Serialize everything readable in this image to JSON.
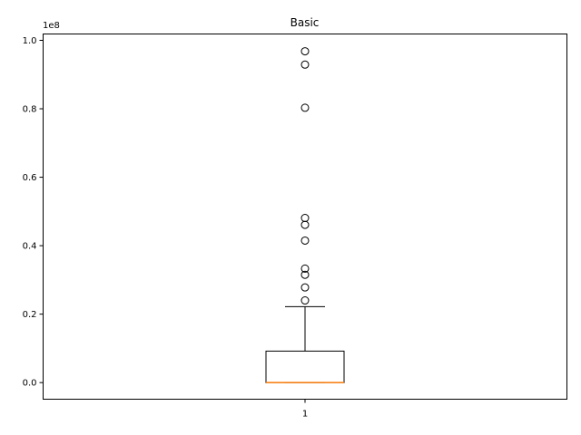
{
  "chart_data": {
    "type": "box",
    "title": "Basic",
    "xlabel": "",
    "ylabel": "",
    "offset_text": "1e8",
    "categories": [
      "1"
    ],
    "ylim": [
      -0.0485,
      1.0185
    ],
    "yticks": [
      {
        "value": 0.0,
        "label": "0.0"
      },
      {
        "value": 0.2,
        "label": "0.2"
      },
      {
        "value": 0.4,
        "label": "0.4"
      },
      {
        "value": 0.6,
        "label": "0.6"
      },
      {
        "value": 0.8,
        "label": "0.8"
      },
      {
        "value": 1.0,
        "label": "1.0"
      }
    ],
    "box": {
      "q1": 0.0,
      "median": 0.0,
      "q3": 0.092,
      "whisker_low": 0.0,
      "whisker_high": 0.222
    },
    "outliers": [
      0.968,
      0.929,
      0.803,
      0.481,
      0.461,
      0.415,
      0.333,
      0.315,
      0.278,
      0.24
    ],
    "colors": {
      "box": "#000000",
      "median": "#ff7f0e",
      "outlier": "#000000"
    },
    "grid": false
  }
}
